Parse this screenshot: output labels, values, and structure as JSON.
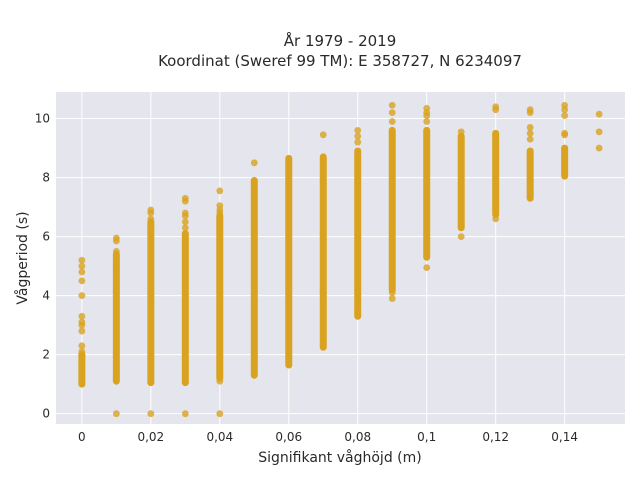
{
  "chart_data": {
    "type": "scatter",
    "title": [
      "År 1979 - 2019",
      "Koordinat (Sweref 99 TM): E 358727, N 6234097"
    ],
    "xlabel": "Signifikant våghöjd (m)",
    "ylabel": "Vågperiod (s)",
    "xlim": [
      -0.0075,
      0.1575
    ],
    "ylim": [
      -0.35,
      10.9
    ],
    "x_ticks": [
      0,
      0.02,
      0.04,
      0.06,
      0.08,
      0.1,
      0.12,
      0.14
    ],
    "x_tick_labels": [
      "0",
      "0,02",
      "0,04",
      "0,06",
      "0,08",
      "0,1",
      "0,12",
      "0,14"
    ],
    "y_ticks": [
      0,
      2,
      4,
      6,
      8,
      10
    ],
    "y_tick_labels": [
      "0",
      "2",
      "4",
      "6",
      "8",
      "10"
    ],
    "grid": true,
    "marker_color": "#d9a31f",
    "plot_background": "#e5e5ee",
    "columns": [
      {
        "x": 0,
        "dense": [
          1.0,
          2.0,
          2.2,
          3.5
        ],
        "points": [
          5.2,
          5.0,
          4.8,
          4.5,
          4.0,
          3.3,
          3.1,
          3.0,
          2.8,
          2.3,
          2.1,
          1.9,
          1.7,
          1.5,
          1.3,
          1.1
        ]
      },
      {
        "x": 0.01,
        "dense": [
          1.1,
          5.4
        ],
        "points": [
          5.95,
          5.85,
          5.5,
          5.0,
          0.0
        ]
      },
      {
        "x": 0.02,
        "dense": [
          1.05,
          6.5
        ],
        "points": [
          6.9,
          6.8,
          6.6,
          6.5,
          6.3,
          0.0
        ]
      },
      {
        "x": 0.03,
        "dense": [
          1.05,
          6.1
        ],
        "points": [
          7.3,
          7.2,
          6.8,
          6.7,
          6.5,
          6.3,
          0.0
        ]
      },
      {
        "x": 0.04,
        "dense": [
          1.2,
          6.7
        ],
        "points": [
          7.55,
          7.05,
          6.9,
          6.8,
          1.1,
          0.0
        ]
      },
      {
        "x": 0.05,
        "dense": [
          1.3,
          7.9
        ],
        "points": [
          8.5
        ]
      },
      {
        "x": 0.06,
        "dense": [
          1.65,
          8.65
        ],
        "points": []
      },
      {
        "x": 0.07,
        "dense": [
          2.25,
          8.7
        ],
        "points": [
          9.45
        ]
      },
      {
        "x": 0.08,
        "dense": [
          3.3,
          8.9
        ],
        "points": [
          9.6,
          9.4,
          9.2
        ]
      },
      {
        "x": 0.09,
        "dense": [
          4.2,
          9.6
        ],
        "points": [
          10.45,
          10.2,
          9.9,
          4.1,
          3.9
        ]
      },
      {
        "x": 0.1,
        "dense": [
          5.3,
          9.6
        ],
        "points": [
          10.35,
          10.2,
          10.1,
          9.9,
          4.95
        ]
      },
      {
        "x": 0.11,
        "dense": [
          6.3,
          9.4
        ],
        "points": [
          9.55,
          6.0
        ]
      },
      {
        "x": 0.12,
        "dense": [
          6.75,
          9.5
        ],
        "points": [
          10.4,
          10.3,
          6.6
        ]
      },
      {
        "x": 0.13,
        "dense": [
          7.3,
          8.9
        ],
        "points": [
          10.3,
          10.2,
          9.7,
          9.5,
          9.3
        ]
      },
      {
        "x": 0.14,
        "dense": [
          8.05,
          9.0
        ],
        "points": [
          10.45,
          10.3,
          10.1,
          9.5,
          9.45
        ]
      },
      {
        "x": 0.15,
        "dense": null,
        "points": [
          10.15,
          9.55,
          9.0
        ]
      }
    ]
  }
}
